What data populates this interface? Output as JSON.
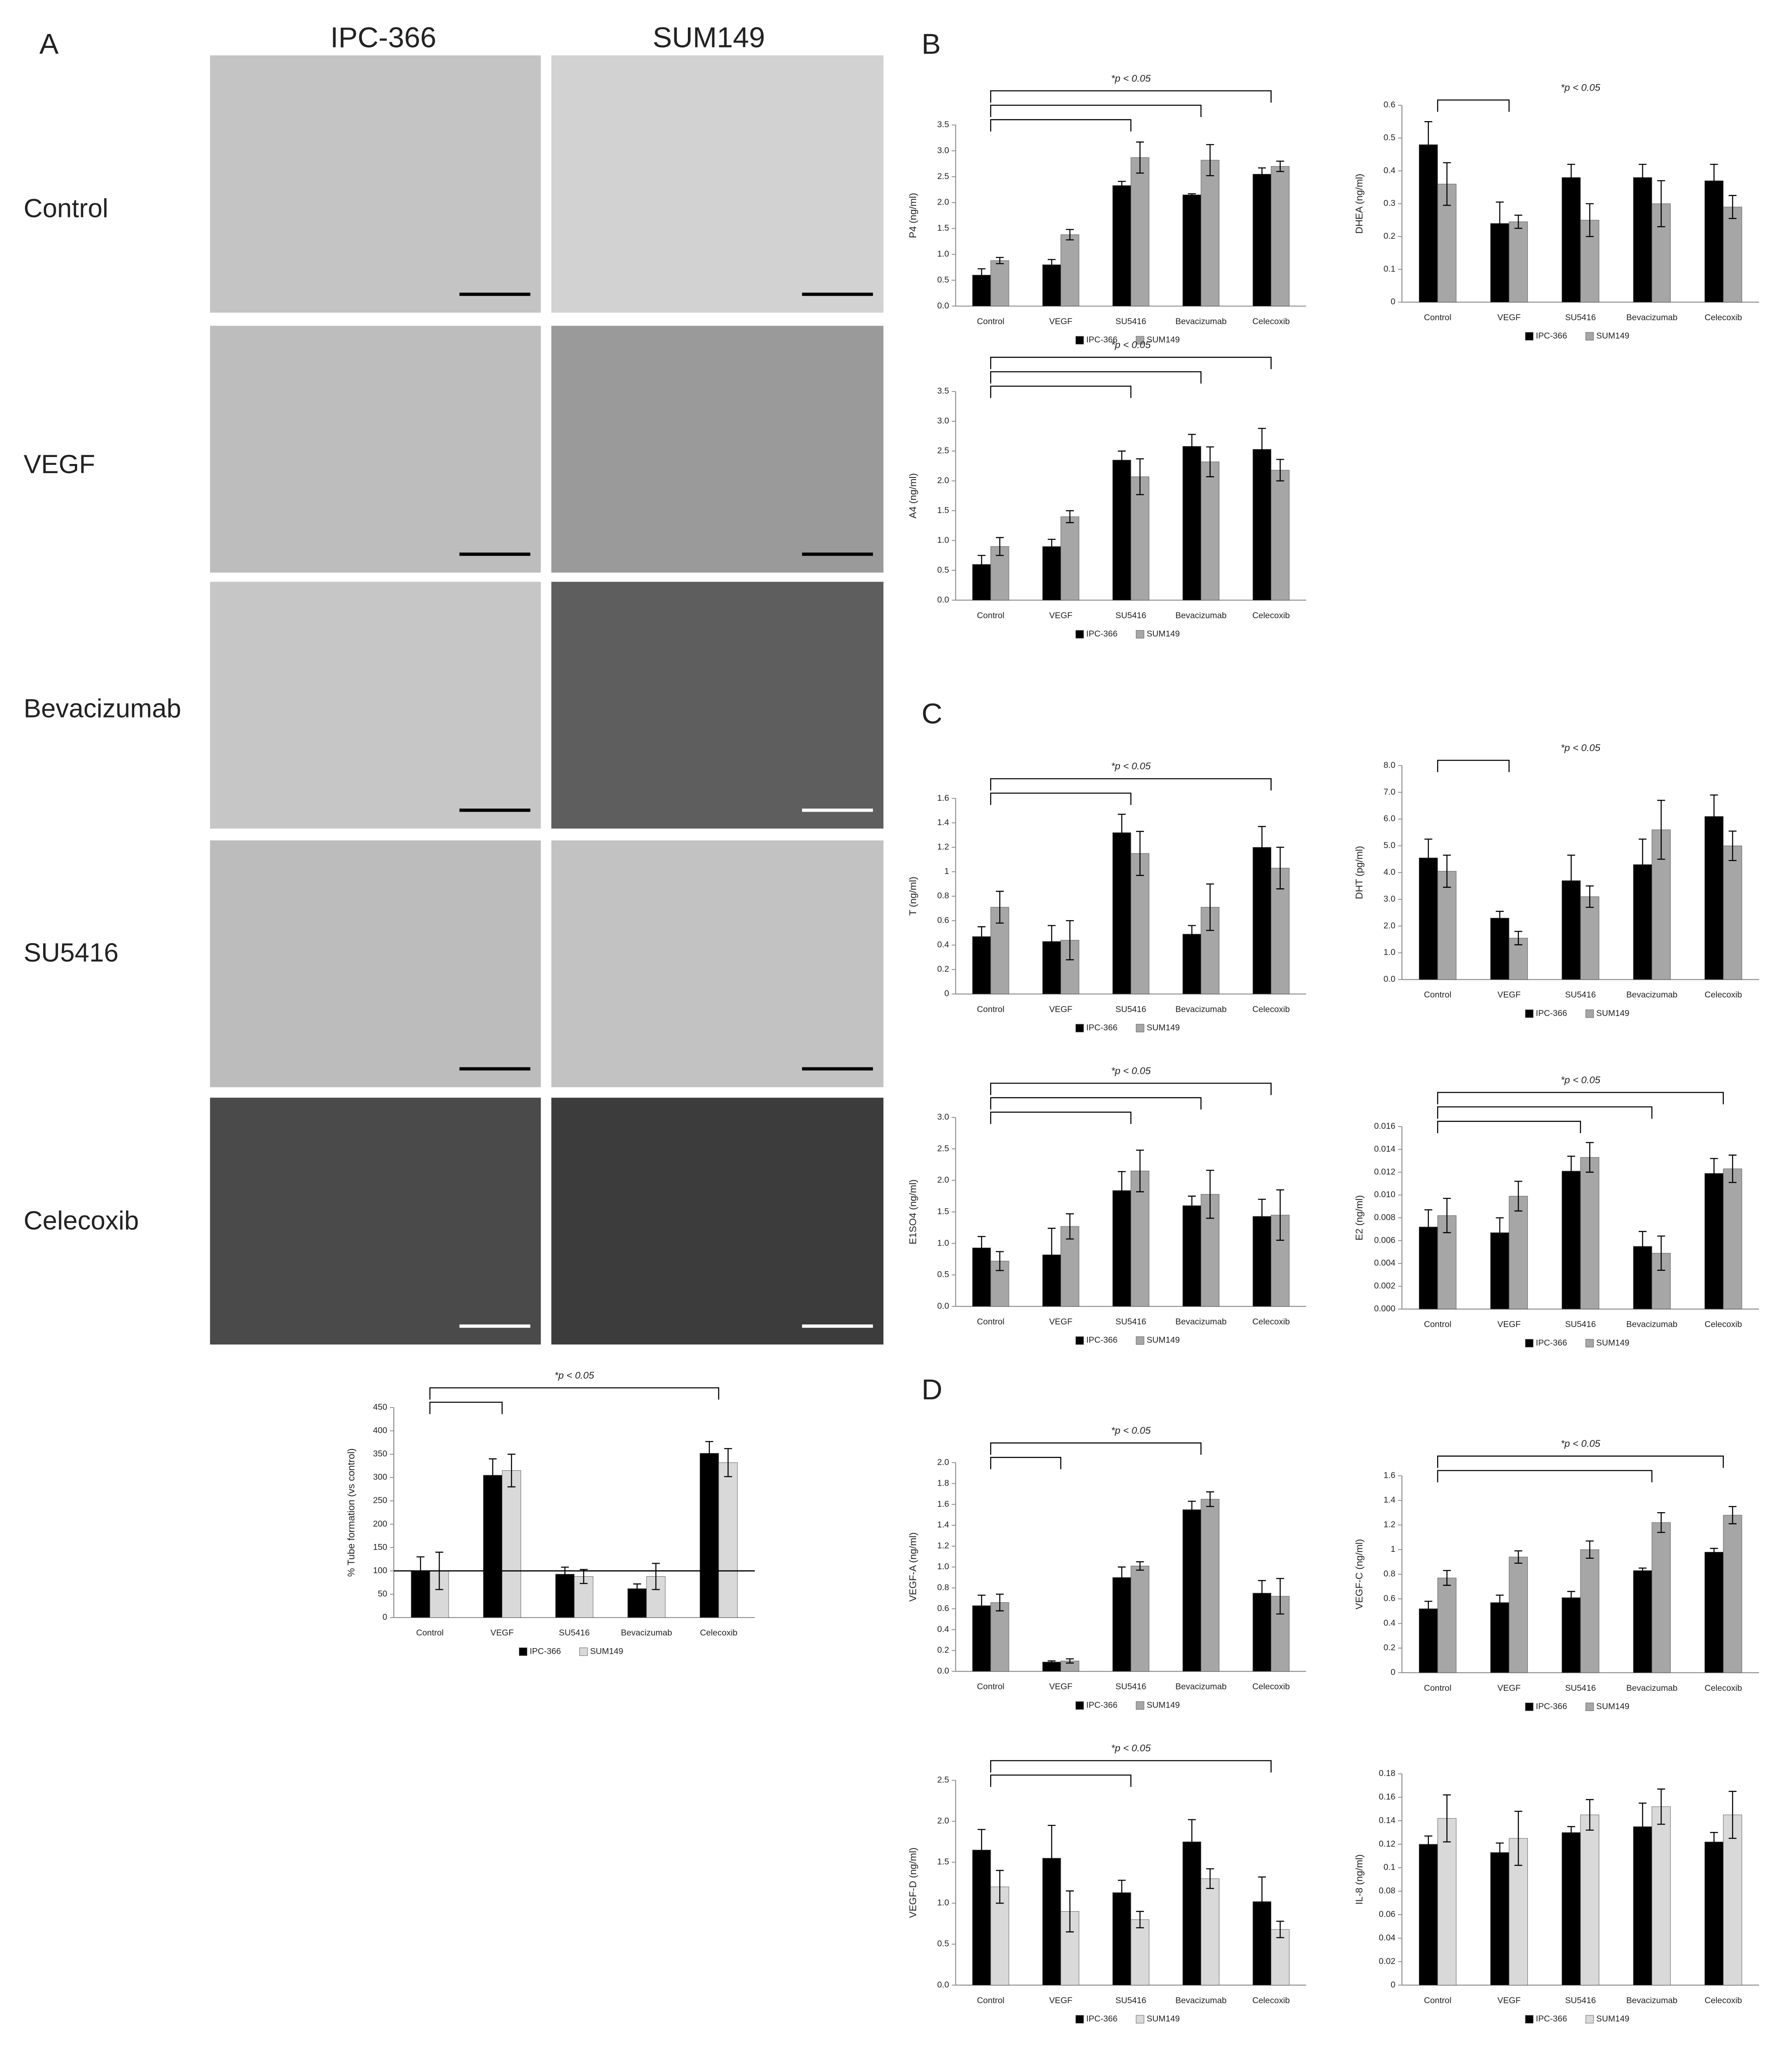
{
  "figure": {
    "panels": [
      "A",
      "B",
      "C",
      "D"
    ],
    "columns": [
      "IPC-366",
      "SUM149"
    ],
    "rows": [
      "Control",
      "VEGF",
      "Bevacizumab",
      "SU5416",
      "Celecoxib"
    ]
  },
  "chart_data": [
    {
      "type": "bar",
      "y_label": "% Tube formation (vs control)",
      "annotation": "*p < 0.05",
      "categories": [
        "Control",
        "VEGF",
        "SU5416",
        "Bevacizumab",
        "Celecoxib"
      ],
      "series": [
        {
          "name": "IPC-366",
          "color": "#000000",
          "values": [
            100,
            305,
            93,
            62,
            352
          ],
          "errors": [
            30,
            35,
            15,
            10,
            25
          ]
        },
        {
          "name": "SUM149",
          "color": "#d9d9d9",
          "values": [
            100,
            315,
            88,
            88,
            332
          ],
          "errors": [
            40,
            35,
            15,
            28,
            30
          ]
        }
      ],
      "ylim": [
        0,
        450
      ],
      "yticks": [
        0,
        50,
        100,
        150,
        200,
        250,
        300,
        350,
        400,
        450
      ],
      "reference_line": 100,
      "comparisons": [
        [
          "Control",
          "VEGF"
        ],
        [
          "Control",
          "Celecoxib"
        ]
      ]
    },
    {
      "type": "bar",
      "y_label": "P4 (ng/ml)",
      "annotation": "*p < 0.05",
      "categories": [
        "Control",
        "VEGF",
        "SU5416",
        "Bevacizumab",
        "Celecoxib"
      ],
      "series": [
        {
          "name": "IPC-366",
          "color": "#000000",
          "values": [
            0.6,
            0.8,
            2.33,
            2.15,
            2.55
          ],
          "errors": [
            0.12,
            0.1,
            0.08,
            0.02,
            0.12
          ]
        },
        {
          "name": "SUM149",
          "color": "#a6a6a6",
          "values": [
            0.88,
            1.38,
            2.87,
            2.82,
            2.7
          ],
          "errors": [
            0.06,
            0.1,
            0.3,
            0.3,
            0.1
          ]
        }
      ],
      "ylim": [
        0,
        3.5
      ],
      "yticks": [
        {
          "value": 0,
          "label": "0.0"
        },
        0.5,
        {
          "value": 1,
          "label": "1.0"
        },
        1.5,
        {
          "value": 2,
          "label": "2.0"
        },
        2.5,
        {
          "value": 3,
          "label": "3.0"
        },
        3.5
      ],
      "comparisons": [
        [
          "Control",
          "SU5416"
        ],
        [
          "Control",
          "Bevacizumab"
        ],
        [
          "Control",
          "Celecoxib"
        ]
      ]
    },
    {
      "type": "bar",
      "y_label": "DHEA (ng/ml)",
      "annotation": "*p < 0.05",
      "categories": [
        "Control",
        "VEGF",
        "SU5416",
        "Bevacizumab",
        "Celecoxib"
      ],
      "series": [
        {
          "name": "IPC-366",
          "color": "#000000",
          "values": [
            0.48,
            0.24,
            0.38,
            0.38,
            0.37
          ],
          "errors": [
            0.07,
            0.065,
            0.04,
            0.04,
            0.05
          ]
        },
        {
          "name": "SUM149",
          "color": "#a6a6a6",
          "values": [
            0.36,
            0.245,
            0.25,
            0.3,
            0.29
          ],
          "errors": [
            0.065,
            0.02,
            0.05,
            0.07,
            0.035
          ]
        }
      ],
      "ylim": [
        0,
        0.6
      ],
      "yticks": [
        0,
        0.1,
        0.2,
        0.3,
        0.4,
        0.5,
        0.6
      ],
      "comparisons": [
        [
          "Control",
          "VEGF"
        ]
      ]
    },
    {
      "type": "bar",
      "y_label": "A4 (ng/ml)",
      "annotation": "*p < 0.05",
      "categories": [
        "Control",
        "VEGF",
        "SU5416",
        "Bevacizumab",
        "Celecoxib"
      ],
      "series": [
        {
          "name": "IPC-366",
          "color": "#000000",
          "values": [
            0.6,
            0.9,
            2.35,
            2.58,
            2.53
          ],
          "errors": [
            0.15,
            0.12,
            0.15,
            0.2,
            0.35
          ]
        },
        {
          "name": "SUM149",
          "color": "#a6a6a6",
          "values": [
            0.9,
            1.4,
            2.07,
            2.32,
            2.18
          ],
          "errors": [
            0.15,
            0.1,
            0.3,
            0.25,
            0.18
          ]
        }
      ],
      "ylim": [
        0,
        3.5
      ],
      "yticks": [
        {
          "value": 0,
          "label": "0.0"
        },
        0.5,
        {
          "value": 1,
          "label": "1.0"
        },
        1.5,
        {
          "value": 2,
          "label": "2.0"
        },
        2.5,
        {
          "value": 3,
          "label": "3.0"
        },
        3.5
      ],
      "comparisons": [
        [
          "Control",
          "SU5416"
        ],
        [
          "Control",
          "Bevacizumab"
        ],
        [
          "Control",
          "Celecoxib"
        ]
      ]
    },
    {
      "type": "bar",
      "y_label": "T (ng/ml)",
      "annotation": "*p < 0.05",
      "categories": [
        "Control",
        "VEGF",
        "SU5416",
        "Bevacizumab",
        "Celecoxib"
      ],
      "series": [
        {
          "name": "IPC-366",
          "color": "#000000",
          "values": [
            0.47,
            0.43,
            1.32,
            0.49,
            1.2
          ],
          "errors": [
            0.08,
            0.13,
            0.15,
            0.07,
            0.17
          ]
        },
        {
          "name": "SUM149",
          "color": "#a6a6a6",
          "values": [
            0.71,
            0.44,
            1.15,
            0.71,
            1.03
          ],
          "errors": [
            0.13,
            0.16,
            0.18,
            0.19,
            0.17
          ]
        }
      ],
      "ylim": [
        0,
        1.6
      ],
      "yticks": [
        0,
        0.2,
        0.4,
        0.6,
        0.8,
        1,
        1.2,
        1.4,
        1.6
      ],
      "comparisons": [
        [
          "Control",
          "SU5416"
        ],
        [
          "Control",
          "Celecoxib"
        ]
      ]
    },
    {
      "type": "bar",
      "y_label": "DHT (pg/ml)",
      "annotation": "*p < 0.05",
      "categories": [
        "Control",
        "VEGF",
        "SU5416",
        "Bevacizumab",
        "Celecoxib"
      ],
      "series": [
        {
          "name": "IPC-366",
          "color": "#000000",
          "values": [
            4.55,
            2.3,
            3.7,
            4.3,
            6.1
          ],
          "errors": [
            0.7,
            0.25,
            0.95,
            0.95,
            0.8
          ]
        },
        {
          "name": "SUM149",
          "color": "#a6a6a6",
          "values": [
            4.05,
            1.55,
            3.1,
            5.6,
            5.0
          ],
          "errors": [
            0.6,
            0.25,
            0.4,
            1.1,
            0.55
          ]
        }
      ],
      "ylim": [
        0,
        8
      ],
      "yticks": [
        {
          "value": 0,
          "label": "0.0"
        },
        {
          "value": 1,
          "label": "1.0"
        },
        {
          "value": 2,
          "label": "2.0"
        },
        {
          "value": 3,
          "label": "3.0"
        },
        {
          "value": 4,
          "label": "4.0"
        },
        {
          "value": 5,
          "label": "5.0"
        },
        {
          "value": 6,
          "label": "6.0"
        },
        {
          "value": 7,
          "label": "7.0"
        },
        {
          "value": 8,
          "label": "8.0"
        }
      ],
      "comparisons": [
        [
          "Control",
          "VEGF"
        ]
      ]
    },
    {
      "type": "bar",
      "y_label": "E1SO4 (ng/ml)",
      "annotation": "*p < 0.05",
      "categories": [
        "Control",
        "VEGF",
        "SU5416",
        "Bevacizumab",
        "Celecoxib"
      ],
      "series": [
        {
          "name": "IPC-366",
          "color": "#000000",
          "values": [
            0.93,
            0.82,
            1.84,
            1.6,
            1.43
          ],
          "errors": [
            0.18,
            0.42,
            0.3,
            0.15,
            0.27
          ]
        },
        {
          "name": "SUM149",
          "color": "#a6a6a6",
          "values": [
            0.72,
            1.27,
            2.15,
            1.78,
            1.45
          ],
          "errors": [
            0.15,
            0.2,
            0.33,
            0.38,
            0.4
          ]
        }
      ],
      "ylim": [
        0,
        3
      ],
      "yticks": [
        {
          "value": 0,
          "label": "0.0"
        },
        0.5,
        {
          "value": 1,
          "label": "1.0"
        },
        1.5,
        {
          "value": 2,
          "label": "2.0"
        },
        2.5,
        {
          "value": 3,
          "label": "3.0"
        }
      ],
      "comparisons": [
        [
          "Control",
          "SU5416"
        ],
        [
          "Control",
          "Bevacizumab"
        ],
        [
          "Control",
          "Celecoxib"
        ]
      ]
    },
    {
      "type": "bar",
      "y_label": "E2 (ng/ml)",
      "annotation": "*p < 0.05",
      "categories": [
        "Control",
        "VEGF",
        "SU5416",
        "Bevacizumab",
        "Celecoxib"
      ],
      "series": [
        {
          "name": "IPC-366",
          "color": "#000000",
          "values": [
            0.0072,
            0.0067,
            0.0121,
            0.0055,
            0.0119
          ],
          "errors": [
            0.0015,
            0.0013,
            0.0013,
            0.0013,
            0.0013
          ]
        },
        {
          "name": "SUM149",
          "color": "#a6a6a6",
          "values": [
            0.0082,
            0.0099,
            0.0133,
            0.0049,
            0.0123
          ],
          "errors": [
            0.0015,
            0.0013,
            0.0013,
            0.0015,
            0.0012
          ]
        }
      ],
      "ylim": [
        0,
        0.016
      ],
      "yticks": [
        {
          "value": 0,
          "label": "0.000"
        },
        {
          "value": 0.002,
          "label": "0.002"
        },
        {
          "value": 0.004,
          "label": "0.004"
        },
        {
          "value": 0.006,
          "label": "0.006"
        },
        {
          "value": 0.008,
          "label": "0.008"
        },
        {
          "value": 0.01,
          "label": "0.010"
        },
        {
          "value": 0.012,
          "label": "0.012"
        },
        {
          "value": 0.014,
          "label": "0.014"
        },
        {
          "value": 0.016,
          "label": "0.016"
        }
      ],
      "comparisons": [
        [
          "Control",
          "SU5416"
        ],
        [
          "Control",
          "Bevacizumab"
        ],
        [
          "Control",
          "Celecoxib"
        ]
      ]
    },
    {
      "type": "bar",
      "y_label": "VEGF-A (ng/ml)",
      "annotation": "*p < 0.05",
      "categories": [
        "Control",
        "VEGF",
        "SU5416",
        "Bevacizumab",
        "Celecoxib"
      ],
      "series": [
        {
          "name": "IPC-366",
          "color": "#000000",
          "values": [
            0.63,
            0.09,
            0.9,
            1.55,
            0.75
          ],
          "errors": [
            0.1,
            0.01,
            0.1,
            0.08,
            0.12
          ]
        },
        {
          "name": "SUM149",
          "color": "#a6a6a6",
          "values": [
            0.66,
            0.1,
            1.01,
            1.65,
            0.72
          ],
          "errors": [
            0.08,
            0.02,
            0.04,
            0.07,
            0.17
          ]
        }
      ],
      "ylim": [
        0,
        2
      ],
      "yticks": [
        {
          "value": 0,
          "label": "0.0"
        },
        0.2,
        0.4,
        0.6,
        0.8,
        {
          "value": 1,
          "label": "1.0"
        },
        1.2,
        1.4,
        1.6,
        1.8,
        {
          "value": 2,
          "label": "2.0"
        }
      ],
      "comparisons": [
        [
          "Control",
          "VEGF"
        ],
        [
          "Control",
          "Bevacizumab"
        ]
      ]
    },
    {
      "type": "bar",
      "y_label": "VEGF-C (ng/ml)",
      "annotation": "*p < 0.05",
      "categories": [
        "Control",
        "VEGF",
        "SU5416",
        "Bevacizumab",
        "Celecoxib"
      ],
      "series": [
        {
          "name": "IPC-366",
          "color": "#000000",
          "values": [
            0.52,
            0.57,
            0.61,
            0.83,
            0.98
          ],
          "errors": [
            0.06,
            0.06,
            0.05,
            0.02,
            0.03
          ]
        },
        {
          "name": "SUM149",
          "color": "#a6a6a6",
          "values": [
            0.77,
            0.94,
            1.0,
            1.22,
            1.28
          ],
          "errors": [
            0.06,
            0.05,
            0.07,
            0.08,
            0.07
          ]
        }
      ],
      "ylim": [
        0,
        1.6
      ],
      "yticks": [
        0,
        0.2,
        0.4,
        0.6,
        0.8,
        1,
        1.2,
        1.4,
        1.6
      ],
      "comparisons": [
        [
          "Control",
          "Bevacizumab"
        ],
        [
          "Control",
          "Celecoxib"
        ]
      ]
    },
    {
      "type": "bar",
      "y_label": "VEGF-D (ng/ml)",
      "annotation": "*p < 0.05",
      "categories": [
        "Control",
        "VEGF",
        "SU5416",
        "Bevacizumab",
        "Celecoxib"
      ],
      "series": [
        {
          "name": "IPC-366",
          "color": "#000000",
          "values": [
            1.65,
            1.55,
            1.13,
            1.75,
            1.02
          ],
          "errors": [
            0.25,
            0.4,
            0.15,
            0.27,
            0.3
          ]
        },
        {
          "name": "SUM149",
          "color": "#d9d9d9",
          "values": [
            1.2,
            0.9,
            0.8,
            1.3,
            0.68
          ],
          "errors": [
            0.2,
            0.25,
            0.1,
            0.12,
            0.1
          ]
        }
      ],
      "ylim": [
        0,
        2.5
      ],
      "yticks": [
        {
          "value": 0,
          "label": "0.0"
        },
        0.5,
        {
          "value": 1,
          "label": "1.0"
        },
        1.5,
        {
          "value": 2,
          "label": "2.0"
        },
        2.5
      ],
      "comparisons": [
        [
          "Control",
          "SU5416"
        ],
        [
          "Control",
          "Celecoxib"
        ]
      ]
    },
    {
      "type": "bar",
      "y_label": "IL-8 (ng/ml)",
      "categories": [
        "Control",
        "VEGF",
        "SU5416",
        "Bevacizumab",
        "Celecoxib"
      ],
      "series": [
        {
          "name": "IPC-366",
          "color": "#000000",
          "values": [
            0.12,
            0.113,
            0.13,
            0.135,
            0.122
          ],
          "errors": [
            0.007,
            0.008,
            0.005,
            0.02,
            0.008
          ]
        },
        {
          "name": "SUM149",
          "color": "#d9d9d9",
          "values": [
            0.142,
            0.125,
            0.145,
            0.152,
            0.145
          ],
          "errors": [
            0.02,
            0.023,
            0.013,
            0.015,
            0.02
          ]
        }
      ],
      "ylim": [
        0,
        0.18
      ],
      "yticks": [
        0,
        0.02,
        0.04,
        0.06,
        0.08,
        0.1,
        0.12,
        0.14,
        0.16,
        0.18
      ],
      "comparisons": []
    }
  ]
}
